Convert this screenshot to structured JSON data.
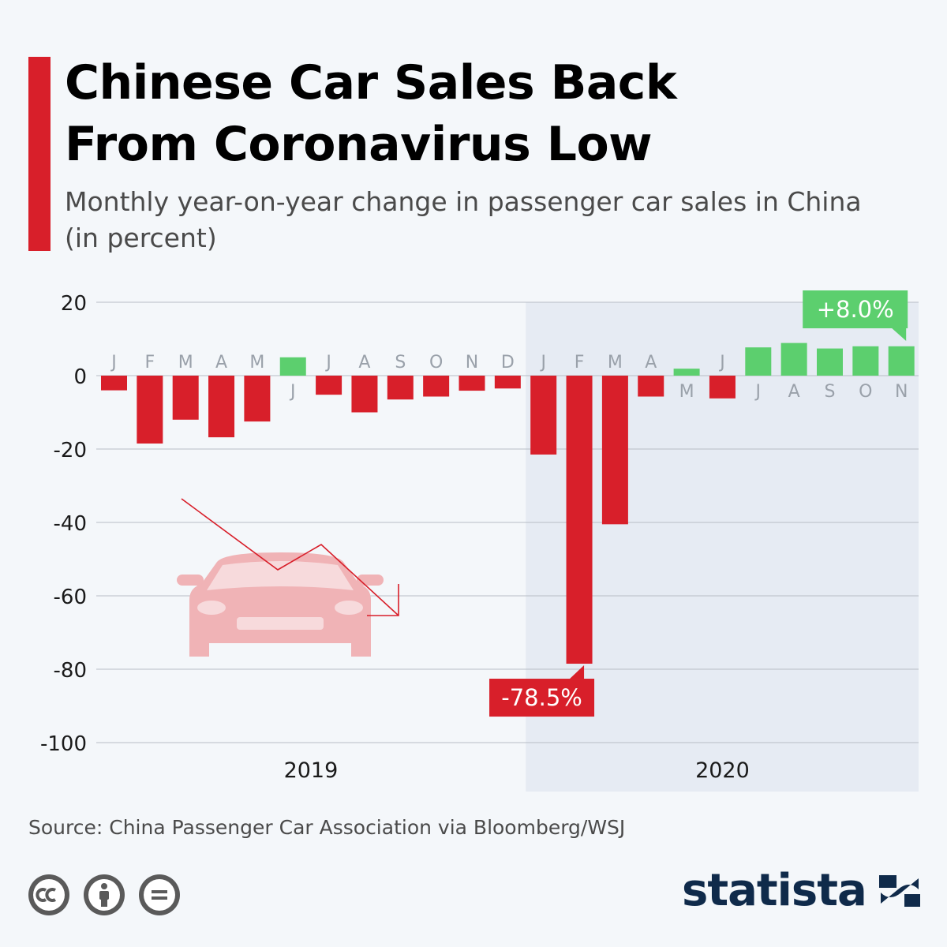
{
  "header": {
    "title": "Chinese Car Sales Back\nFrom Coronavirus Low",
    "subtitle": "Monthly year-on-year change in passenger car sales in China (in percent)"
  },
  "chart_data": {
    "type": "bar",
    "title": "Chinese Car Sales Back From Coronavirus Low",
    "subtitle": "Monthly year-on-year change in passenger car sales in China (in percent)",
    "ylim": [
      -100,
      20
    ],
    "yticks": [
      20,
      0,
      -20,
      -40,
      -60,
      -80,
      -100
    ],
    "grid": true,
    "highlight_year": "2020",
    "years": [
      {
        "label": "2019",
        "months": [
          "J",
          "F",
          "M",
          "A",
          "M",
          "J",
          "J",
          "A",
          "S",
          "O",
          "N",
          "D"
        ]
      },
      {
        "label": "2020",
        "months": [
          "J",
          "F",
          "M",
          "A",
          "M",
          "J",
          "J",
          "A",
          "S",
          "O",
          "N"
        ]
      }
    ],
    "categories": [
      "Jan 2019",
      "Feb 2019",
      "Mar 2019",
      "Apr 2019",
      "May 2019",
      "Jun 2019",
      "Jul 2019",
      "Aug 2019",
      "Sep 2019",
      "Oct 2019",
      "Nov 2019",
      "Dec 2019",
      "Jan 2020",
      "Feb 2020",
      "Mar 2020",
      "Apr 2020",
      "May 2020",
      "Jun 2020",
      "Jul 2020",
      "Aug 2020",
      "Sep 2020",
      "Oct 2020",
      "Nov 2020"
    ],
    "month_labels": [
      "J",
      "F",
      "M",
      "A",
      "M",
      "J",
      "J",
      "A",
      "S",
      "O",
      "N",
      "D",
      "J",
      "F",
      "M",
      "A",
      "M",
      "J",
      "J",
      "A",
      "S",
      "O",
      "N"
    ],
    "values": [
      -4.0,
      -18.5,
      -12.0,
      -16.8,
      -12.5,
      5.0,
      -5.2,
      -10.0,
      -6.5,
      -5.7,
      -4.1,
      -3.5,
      -21.5,
      -78.5,
      -40.5,
      -5.7,
      1.9,
      -6.2,
      7.7,
      8.9,
      7.4,
      8.0,
      8.0
    ],
    "colors": {
      "negative": "#d81f2a",
      "positive": "#5ccf6e"
    },
    "callouts": [
      {
        "index": 13,
        "text": "-78.5%",
        "color": "#d81f2a"
      },
      {
        "index": 22,
        "text": "+8.0%",
        "color": "#5ccf6e"
      }
    ]
  },
  "footer": {
    "source": "Source: China Passenger Car Association via Bloomberg/WSJ",
    "brand": "statista",
    "license_icons": [
      "cc-icon",
      "attribution-icon",
      "no-derivatives-icon"
    ]
  }
}
